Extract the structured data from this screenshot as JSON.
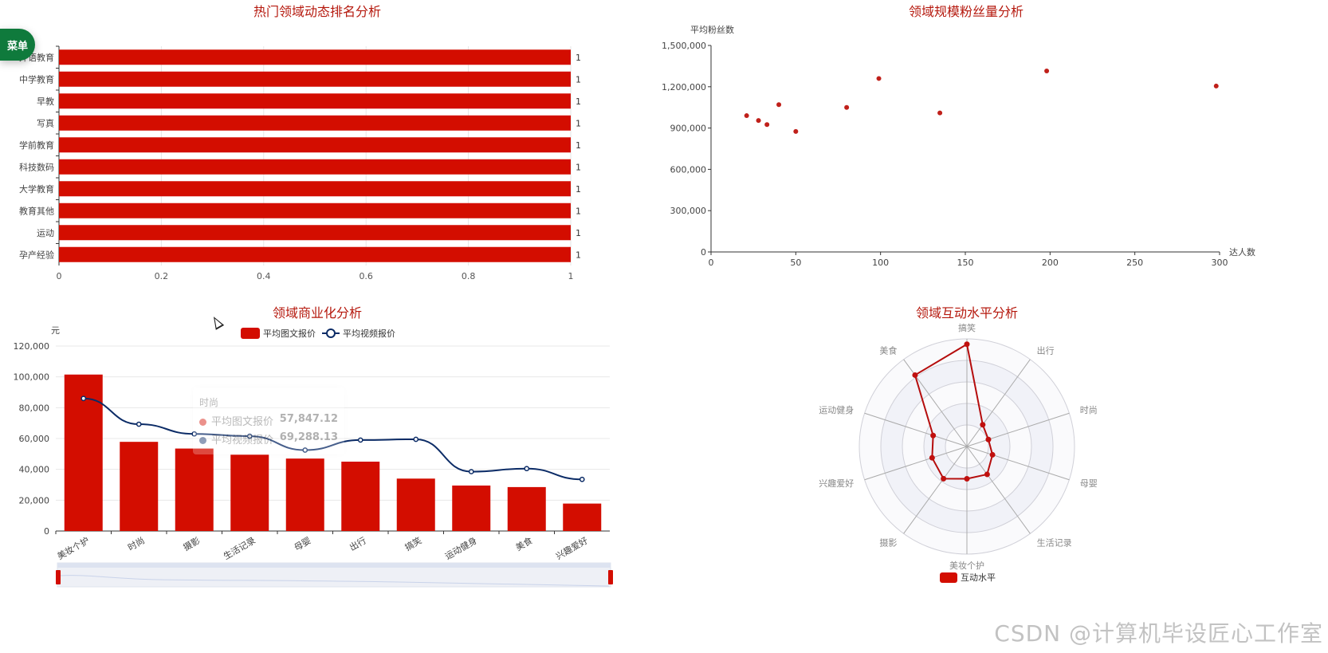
{
  "menu": {
    "label": "菜单"
  },
  "watermark": "CSDN @计算机毕设匠心工作室",
  "colors": {
    "red": "#d30d00",
    "navy": "#0b2b66",
    "title": "#b5180d"
  },
  "chart_data": [
    {
      "type": "bar",
      "id": "ranking",
      "title": "热门领域动态排名分析",
      "orientation": "horizontal",
      "categories": [
        "外语教育",
        "中学教育",
        "早教",
        "写真",
        "学前教育",
        "科技数码",
        "大学教育",
        "教育其他",
        "运动",
        "孕产经验"
      ],
      "values": [
        1,
        1,
        1,
        1,
        1,
        1,
        1,
        1,
        1,
        1
      ],
      "xlim": [
        0,
        1
      ],
      "xticks": [
        "0",
        "0.2",
        "0.4",
        "0.6",
        "0.8",
        "1"
      ],
      "grid": true
    },
    {
      "type": "scatter",
      "id": "scale",
      "title": "领域规模粉丝量分析",
      "ylabel": "平均粉丝数",
      "xlabel": "达人数",
      "xlim": [
        0,
        300
      ],
      "ylim": [
        0,
        1500000
      ],
      "xticks": [
        "0",
        "50",
        "100",
        "150",
        "200",
        "250",
        "300"
      ],
      "yticks": [
        "0",
        "300,000",
        "600,000",
        "900,000",
        "1,200,000",
        "1,500,000"
      ],
      "points": [
        [
          21,
          990000
        ],
        [
          28,
          955000
        ],
        [
          33,
          925000
        ],
        [
          40,
          1070000
        ],
        [
          50,
          875000
        ],
        [
          80,
          1050000
        ],
        [
          99,
          1260000
        ],
        [
          135,
          1010000
        ],
        [
          198,
          1315000
        ],
        [
          298,
          1205000
        ]
      ]
    },
    {
      "type": "bar+line",
      "id": "commercial",
      "title": "领域商业化分析",
      "ylabel": "元",
      "ylim": [
        0,
        120000
      ],
      "yticks": [
        "0",
        "20,000",
        "40,000",
        "60,000",
        "80,000",
        "100,000",
        "120,000"
      ],
      "categories": [
        "美妆个护",
        "时尚",
        "摄影",
        "生活记录",
        "母婴",
        "出行",
        "搞笑",
        "运动健身",
        "美食",
        "兴趣爱好"
      ],
      "series": [
        {
          "name": "平均图文报价",
          "type": "bar",
          "values": [
            101500,
            57847.12,
            53500,
            49500,
            47000,
            45000,
            34000,
            29500,
            28500,
            17800
          ]
        },
        {
          "name": "平均视频报价",
          "type": "line",
          "values": [
            86000,
            69288.13,
            63000,
            61500,
            52500,
            59000,
            59500,
            38500,
            40500,
            33500
          ]
        }
      ],
      "tooltip": {
        "category": "时尚",
        "rows": [
          {
            "name": "平均图文报价",
            "value": "57,847.12"
          },
          {
            "name": "平均视频报价",
            "value": "69,288.13"
          }
        ]
      }
    },
    {
      "type": "radar",
      "id": "interaction",
      "title": "领域互动水平分析",
      "legend": "互动水平",
      "indicators": [
        "搞笑",
        "出行",
        "时尚",
        "母婴",
        "生活记录",
        "美妆个护",
        "摄影",
        "兴趣爱好",
        "运动健身",
        "美食"
      ],
      "max": 100,
      "values": [
        95,
        25,
        21,
        25,
        32,
        30,
        37,
        34,
        33,
        82
      ]
    }
  ]
}
